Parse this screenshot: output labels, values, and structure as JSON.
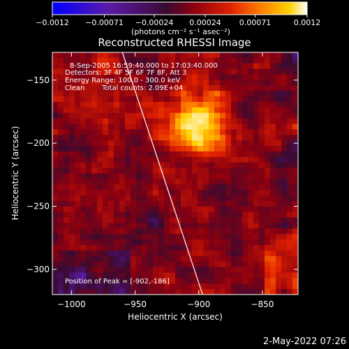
{
  "chart_data": {
    "type": "heatmap",
    "title": "Reconstructed RHESSI Image",
    "xlabel": "Heliocentric X (arcsec)",
    "ylabel": "Heliocentric Y (arcsec)",
    "xlim": [
      -1015,
      -822
    ],
    "ylim": [
      -320,
      -128
    ],
    "x_ticks": [
      {
        "value": -1000,
        "label": "−1000"
      },
      {
        "value": -950,
        "label": "−950"
      },
      {
        "value": -900,
        "label": "−900"
      },
      {
        "value": -850,
        "label": "−850"
      }
    ],
    "y_ticks": [
      {
        "value": -150,
        "label": "−150"
      },
      {
        "value": -200,
        "label": "−200"
      },
      {
        "value": -250,
        "label": "−250"
      },
      {
        "value": -300,
        "label": "−300"
      }
    ],
    "colorbar": {
      "range": [
        -0.0012,
        0.0012
      ],
      "ticks": [
        {
          "value": -0.0012,
          "label": "−0.0012"
        },
        {
          "value": -0.00071,
          "label": "−0.00071"
        },
        {
          "value": -0.00024,
          "label": "−0.00024"
        },
        {
          "value": 0.00024,
          "label": "0.00024"
        },
        {
          "value": 0.00071,
          "label": "0.00071"
        },
        {
          "value": 0.0012,
          "label": "0.0012"
        }
      ],
      "unit_label": "(photons cm⁻² s⁻¹ asec⁻²)",
      "colors": [
        "#0000ff",
        "#5a1aa8",
        "#3a0a30",
        "#8a0010",
        "#e02000",
        "#ff8000",
        "#ffd000",
        "#ffffff"
      ]
    },
    "peak": {
      "x": -902,
      "y": -186
    },
    "limb_line": {
      "x": [
        -960,
        -897
      ],
      "y": [
        -128,
        -320
      ]
    },
    "annotations": {
      "time": "8-Sep-2005 16:59:40.000 to 17:03:40.000",
      "detectors": "Detectors: 3F 4F 5F 6F 7F 8F, Att 3",
      "energy": "Energy Range: 100.0 - 300.0 keV",
      "algorithm": "Clean",
      "total_counts": "Total counts: 2.09E+04",
      "peak_label": "Position of Peak = [-902,-186]"
    }
  },
  "footer": {
    "timestamp": "2-May-2022 07:26"
  }
}
